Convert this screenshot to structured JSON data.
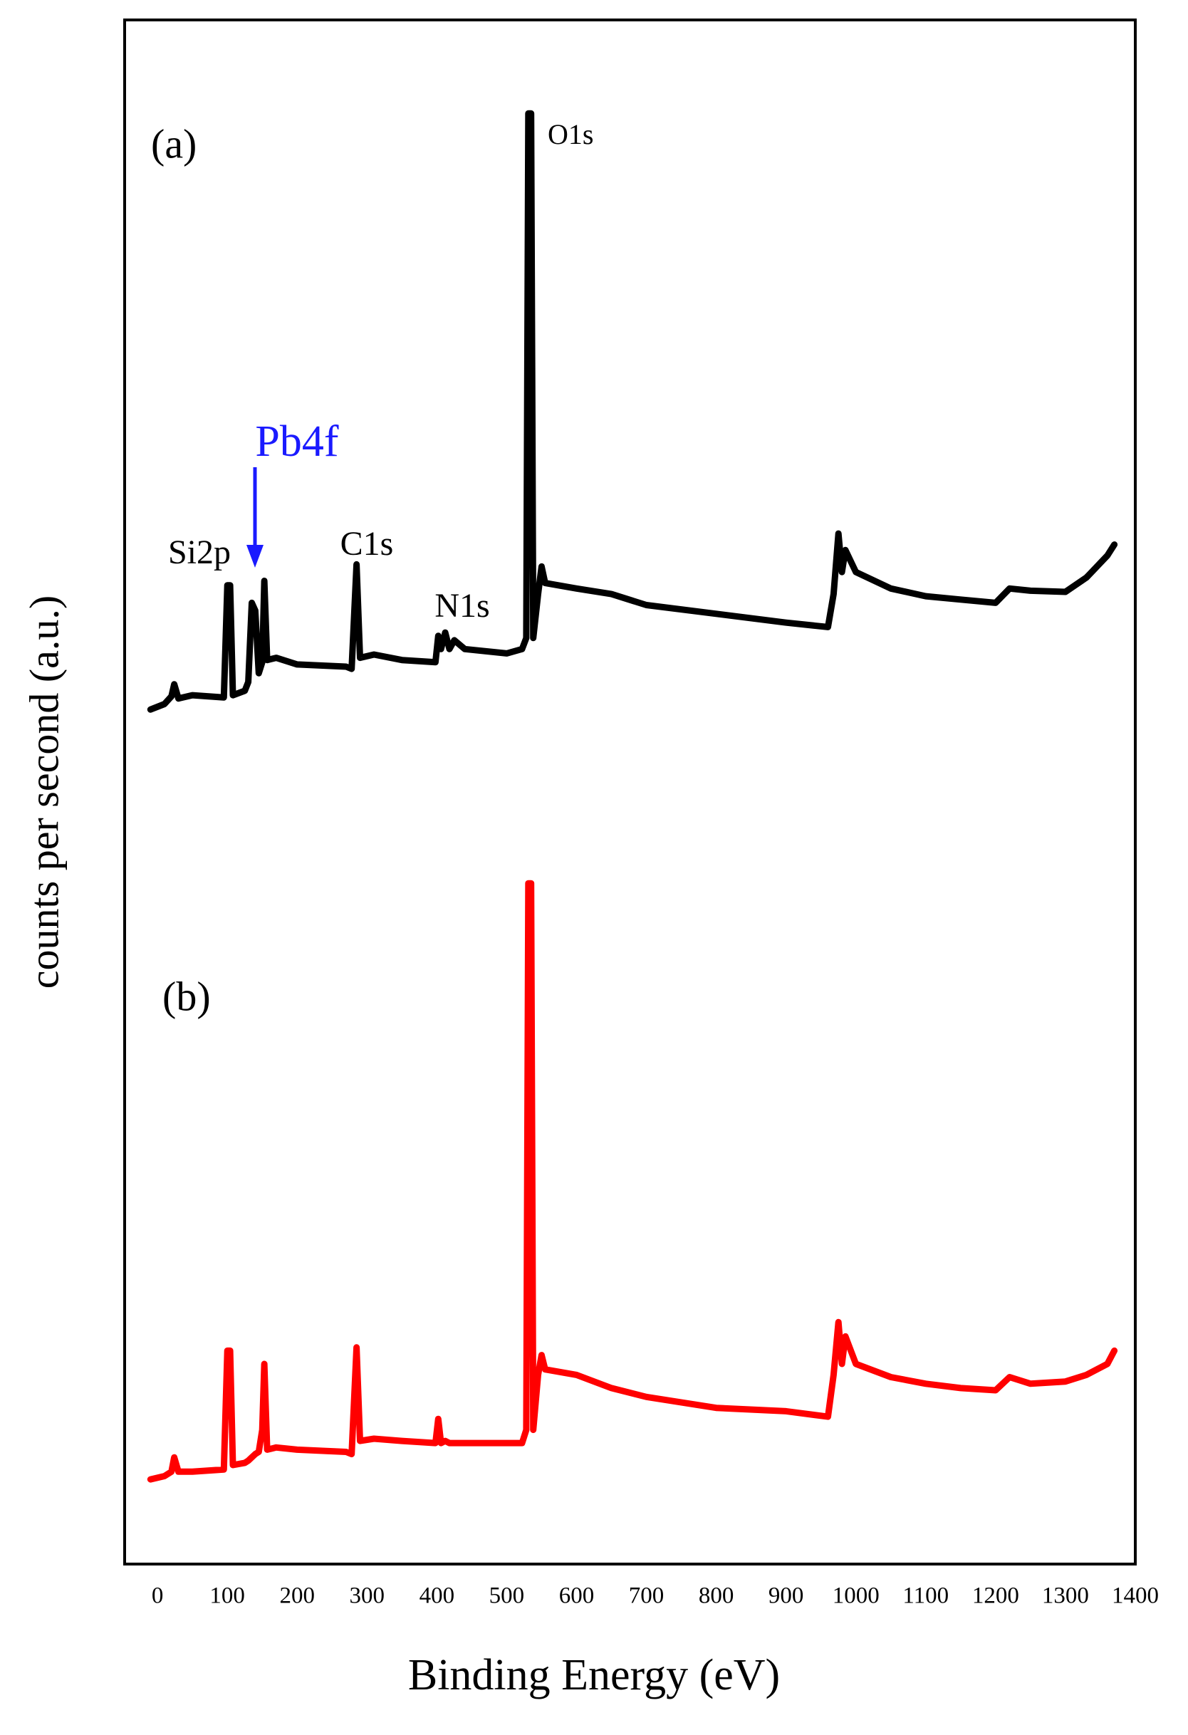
{
  "chart_data": {
    "type": "line",
    "x_label": "Binding Energy (eV)",
    "y_label": "counts per second (a.u.)",
    "xlim": [
      -47,
      1400
    ],
    "xticks": [
      0,
      100,
      200,
      300,
      400,
      500,
      600,
      700,
      800,
      900,
      1000,
      1100,
      1200,
      1300,
      1400
    ],
    "ylim": [
      0,
      1404
    ],
    "annotations": [
      "O1s",
      "Si2p",
      "Pb4f",
      "C1s",
      "N1s"
    ],
    "x": [
      -10,
      10,
      20,
      24,
      30,
      50,
      95,
      100,
      104,
      108,
      125,
      130,
      135,
      140,
      145,
      150,
      153,
      157,
      170,
      200,
      270,
      278,
      285,
      290,
      310,
      350,
      398,
      402,
      406,
      412,
      418,
      425,
      440,
      500,
      522,
      528,
      531,
      535,
      538,
      545,
      550,
      555,
      600,
      650,
      700,
      800,
      900,
      960,
      968,
      975,
      980,
      985,
      1000,
      1050,
      1100,
      1150,
      1200,
      1220,
      1250,
      1300,
      1330,
      1360,
      1370
    ],
    "series": [
      {
        "name": "(a)",
        "color": "#000000",
        "values": [
          777,
          782,
          789,
          800,
          787,
          790,
          788,
          890,
          890,
          790,
          794,
          802,
          874,
          867,
          810,
          820,
          894,
          822,
          824,
          818,
          816,
          814,
          909,
          824,
          827,
          822,
          820,
          844,
          832,
          847,
          832,
          840,
          832,
          828,
          832,
          842,
          1319,
          1319,
          842,
          882,
          907,
          892,
          887,
          882,
          872,
          864,
          856,
          852,
          882,
          937,
          902,
          922,
          902,
          887,
          880,
          877,
          874,
          887,
          885,
          884,
          897,
          917,
          927
        ]
      },
      {
        "name": "(b)",
        "color": "#ff0000",
        "values": [
          77,
          80,
          84,
          97,
          84,
          84,
          86,
          194,
          194,
          90,
          92,
          94,
          97,
          100,
          102,
          122,
          182,
          104,
          106,
          104,
          102,
          100,
          197,
          112,
          114,
          112,
          110,
          132,
          110,
          112,
          110,
          110,
          110,
          110,
          110,
          122,
          619,
          619,
          122,
          172,
          190,
          177,
          172,
          160,
          152,
          142,
          139,
          134,
          172,
          220,
          182,
          207,
          182,
          170,
          164,
          160,
          158,
          170,
          164,
          166,
          172,
          182,
          194
        ]
      }
    ]
  }
}
